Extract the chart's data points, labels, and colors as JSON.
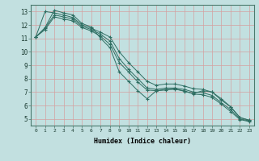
{
  "xlabel": "Humidex (Indice chaleur)",
  "ylabel": "",
  "bg_color": "#c2e0e0",
  "line_color": "#2e6e62",
  "grid_color": "#d4a0a0",
  "xlim": [
    -0.5,
    23.5
  ],
  "ylim": [
    4.5,
    13.5
  ],
  "xticks": [
    0,
    1,
    2,
    3,
    4,
    5,
    6,
    7,
    8,
    9,
    10,
    11,
    12,
    13,
    14,
    15,
    16,
    17,
    18,
    19,
    20,
    21,
    22,
    23
  ],
  "yticks": [
    5,
    6,
    7,
    8,
    9,
    10,
    11,
    12,
    13
  ],
  "series": [
    [
      11.1,
      11.8,
      13.1,
      12.9,
      12.75,
      12.1,
      11.85,
      11.0,
      10.3,
      8.5,
      7.8,
      7.1,
      6.5,
      7.1,
      7.15,
      7.25,
      7.05,
      6.9,
      7.1,
      7.0,
      6.4,
      5.9,
      5.1,
      4.9
    ],
    [
      11.1,
      13.0,
      12.9,
      12.75,
      12.55,
      12.0,
      11.75,
      11.45,
      11.1,
      10.0,
      9.2,
      8.5,
      7.8,
      7.5,
      7.6,
      7.6,
      7.45,
      7.25,
      7.2,
      7.0,
      6.5,
      5.9,
      5.1,
      4.9
    ],
    [
      11.1,
      11.75,
      12.75,
      12.6,
      12.45,
      11.9,
      11.65,
      11.3,
      10.8,
      9.5,
      8.7,
      8.0,
      7.3,
      7.2,
      7.3,
      7.3,
      7.2,
      7.0,
      6.95,
      6.75,
      6.2,
      5.7,
      5.0,
      4.85
    ],
    [
      11.1,
      11.65,
      12.6,
      12.45,
      12.3,
      11.8,
      11.55,
      11.15,
      10.55,
      9.2,
      8.5,
      7.75,
      7.15,
      7.1,
      7.2,
      7.2,
      7.1,
      6.85,
      6.8,
      6.6,
      6.1,
      5.55,
      4.95,
      4.8
    ]
  ]
}
